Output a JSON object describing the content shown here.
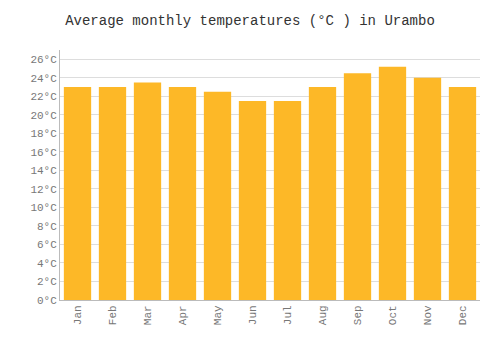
{
  "chart_data": {
    "type": "bar",
    "title": "Average monthly temperatures (°C ) in Urambo",
    "categories": [
      "Jan",
      "Feb",
      "Mar",
      "Apr",
      "May",
      "Jun",
      "Jul",
      "Aug",
      "Sep",
      "Oct",
      "Nov",
      "Dec"
    ],
    "values": [
      23.0,
      23.0,
      23.5,
      23.0,
      22.5,
      21.5,
      21.5,
      23.0,
      24.5,
      25.2,
      24.0,
      23.0
    ],
    "color": "#FDB827",
    "ylim": [
      0,
      27
    ],
    "yticks": [
      {
        "value": 0,
        "label": "0°C"
      },
      {
        "value": 2,
        "label": "2°C"
      },
      {
        "value": 4,
        "label": "4°C"
      },
      {
        "value": 6,
        "label": "6°C"
      },
      {
        "value": 8,
        "label": "8°C"
      },
      {
        "value": 10,
        "label": "10°C"
      },
      {
        "value": 12,
        "label": "12°C"
      },
      {
        "value": 14,
        "label": "14°C"
      },
      {
        "value": 16,
        "label": "16°C"
      },
      {
        "value": 18,
        "label": "18°C"
      },
      {
        "value": 20,
        "label": "20°C"
      },
      {
        "value": 22,
        "label": "22°C"
      },
      {
        "value": 24,
        "label": "24°C"
      },
      {
        "value": 26,
        "label": "26°C"
      }
    ],
    "grid": true
  }
}
